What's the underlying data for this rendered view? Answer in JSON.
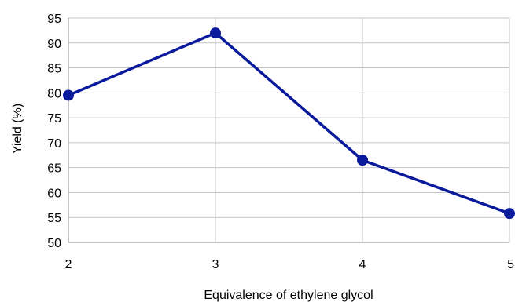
{
  "chart_data": {
    "type": "line",
    "title": "",
    "xlabel": "Equivalence of ethylene glycol",
    "ylabel": "Yield (%)",
    "x": [
      2,
      3,
      4,
      5
    ],
    "series": [
      {
        "values": [
          79.5,
          92,
          66.5,
          55.8
        ]
      }
    ],
    "xticks": [
      "2",
      "3",
      "4",
      "5"
    ],
    "yticks": [
      "50",
      "55",
      "60",
      "65",
      "70",
      "75",
      "80",
      "85",
      "90",
      "95"
    ],
    "xlim": [
      2,
      5
    ],
    "ylim": [
      50,
      95
    ],
    "grid": true,
    "legend": "none",
    "colors": {
      "series": "#0a1a9c",
      "grid": "#c4c4c4",
      "axis": "#8c8c8c"
    }
  }
}
